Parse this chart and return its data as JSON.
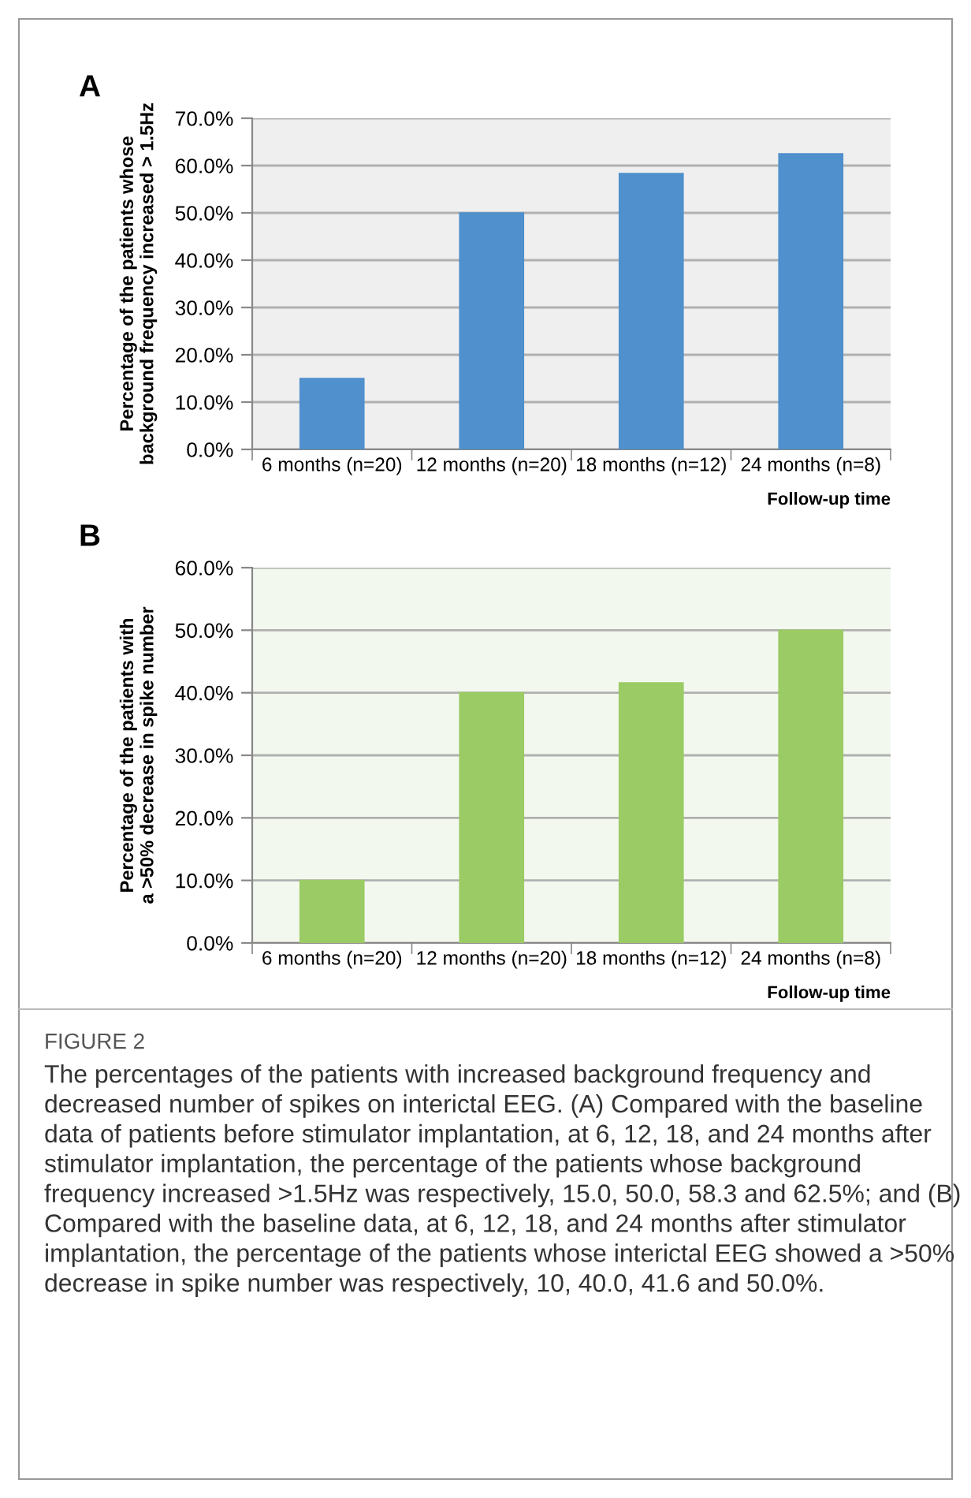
{
  "chart_data": [
    {
      "type": "bar",
      "xlabel": "Follow-up time",
      "ylabel": "Percentage of the patients whose\nbackground frequency increased > 1.5Hz",
      "categories": [
        "6 months (n=20)",
        "12 months (n=20)",
        "18 months (n=12)",
        "24 months (n=8)"
      ],
      "values": [
        15.0,
        50.0,
        58.3,
        62.5
      ],
      "color": "#4f90cd",
      "ylim": [
        0,
        70
      ],
      "yticks": [
        {
          "value": 0,
          "label": "0.0%"
        },
        {
          "value": 10,
          "label": "10.0%"
        },
        {
          "value": 20,
          "label": "20.0%"
        },
        {
          "value": 30,
          "label": "30.0%"
        },
        {
          "value": 40,
          "label": "40.0%"
        },
        {
          "value": 50,
          "label": "50.0%"
        },
        {
          "value": 60,
          "label": "60.0%"
        },
        {
          "value": 70,
          "label": "70.0%"
        }
      ],
      "grid": "y",
      "annotations": [
        "A"
      ]
    },
    {
      "type": "bar",
      "xlabel": "Follow-up time",
      "ylabel": "Percentage of the patients with\na >50% decrease in spike number",
      "categories": [
        "6 months (n=20)",
        "12 months (n=20)",
        "18 months (n=12)",
        "24 months (n=8)"
      ],
      "values": [
        10.0,
        40.0,
        41.6,
        50.0
      ],
      "color": "#9bcb64",
      "ylim": [
        0,
        60
      ],
      "yticks": [
        {
          "value": 0,
          "label": "0.0%"
        },
        {
          "value": 10,
          "label": "10.0%"
        },
        {
          "value": 20,
          "label": "20.0%"
        },
        {
          "value": 30,
          "label": "30.0%"
        },
        {
          "value": 40,
          "label": "40.0%"
        },
        {
          "value": 50,
          "label": "50.0%"
        },
        {
          "value": 60,
          "label": "60.0%"
        }
      ],
      "grid": "y",
      "annotations": [
        "B",
        "FIGURE 2",
        "The percentages of the patients with increased background frequency and decreased number of spikes on interictal EEG. (A) Compared with the baseline data of patients before stimulator implantation, at 6, 12, 18, and 24 months after stimulator implantation, the percentage of the patients whose background frequency increased >1.5Hz was respectively, 15.0, 50.0, 58.3 and 62.5%; and (B) Compared with the baseline data, at 6, 12, 18, and 24 months after stimulator implantation, the percentage of the patients whose interictal EEG showed a >50% decrease in spike number was respectively, 10, 40.0, 41.6 and 50.0%."
      ]
    }
  ]
}
